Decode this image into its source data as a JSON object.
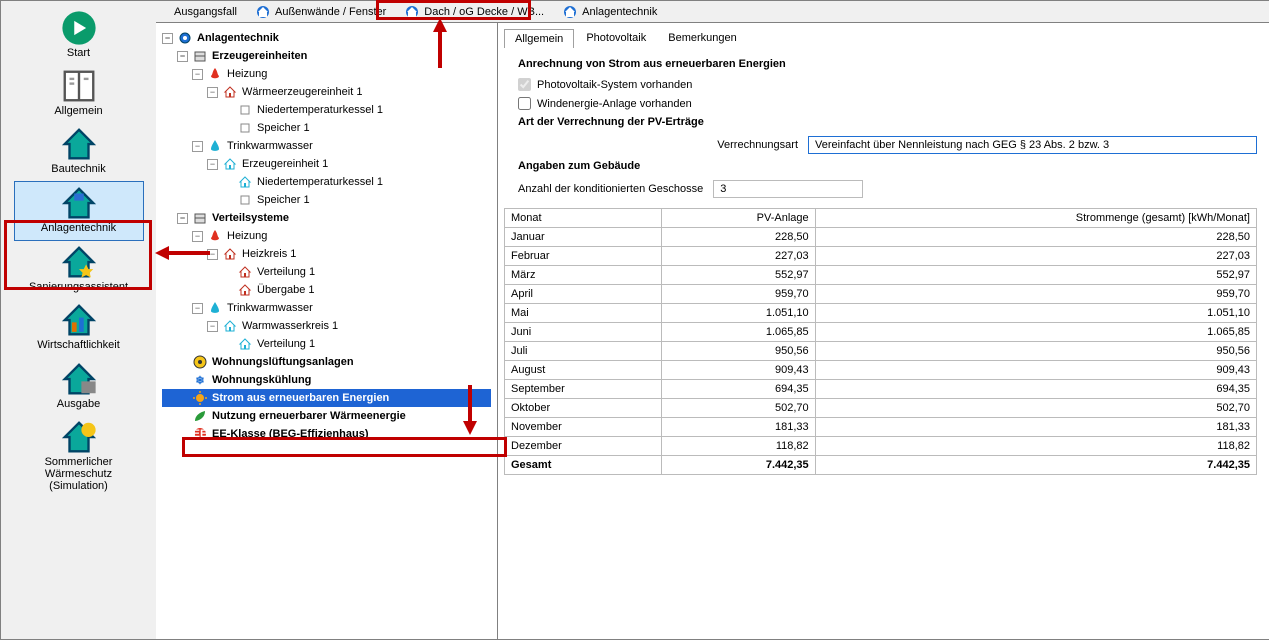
{
  "sidebar": [
    {
      "label": "Start",
      "name": "start"
    },
    {
      "label": "Allgemein",
      "name": "allgemein"
    },
    {
      "label": "Bautechnik",
      "name": "bautechnik"
    },
    {
      "label": "Anlagentechnik",
      "name": "anlagentechnik",
      "active": true
    },
    {
      "label": "Sanierungsassistent",
      "name": "sanierungsassistent"
    },
    {
      "label": "Wirtschaftlichkeit",
      "name": "wirtschaftlichkeit"
    },
    {
      "label": "Ausgabe",
      "name": "ausgabe"
    },
    {
      "label": "Sommerlicher Wärmeschutz (Simulation)",
      "name": "sommerlicher"
    }
  ],
  "tabs": [
    {
      "label": "Ausgangsfall",
      "name": "tab-ausgangsfall"
    },
    {
      "label": "Außenwände / Fenster",
      "name": "tab-aussenwaende"
    },
    {
      "label": "Dach / oG Decke / WB...",
      "name": "tab-dach",
      "highlight": true
    },
    {
      "label": "Anlagentechnik",
      "name": "tab-anlagentechnik"
    }
  ],
  "tree": [
    {
      "d": 0,
      "exp": "-",
      "ic": "gear",
      "t": "Anlagentechnik",
      "b": 1
    },
    {
      "d": 1,
      "exp": "-",
      "ic": "cube",
      "t": "Erzeugereinheiten",
      "b": 1
    },
    {
      "d": 2,
      "exp": "-",
      "ic": "flame",
      "t": "Heizung"
    },
    {
      "d": 3,
      "exp": "-",
      "ic": "house-r",
      "t": "Wärmeerzeugereinheit 1"
    },
    {
      "d": 4,
      "exp": "",
      "ic": "box",
      "t": "Niedertemperaturkessel 1"
    },
    {
      "d": 4,
      "exp": "",
      "ic": "box",
      "t": "Speicher 1"
    },
    {
      "d": 2,
      "exp": "-",
      "ic": "drop",
      "t": "Trinkwarmwasser"
    },
    {
      "d": 3,
      "exp": "-",
      "ic": "house-c",
      "t": "Erzeugereinheit 1"
    },
    {
      "d": 4,
      "exp": "",
      "ic": "house-c",
      "t": "Niedertemperaturkessel 1"
    },
    {
      "d": 4,
      "exp": "",
      "ic": "box",
      "t": "Speicher 1"
    },
    {
      "d": 1,
      "exp": "-",
      "ic": "cube",
      "t": "Verteilsysteme",
      "b": 1
    },
    {
      "d": 2,
      "exp": "-",
      "ic": "flame",
      "t": "Heizung"
    },
    {
      "d": 3,
      "exp": "-",
      "ic": "house-r",
      "t": "Heizkreis 1"
    },
    {
      "d": 4,
      "exp": "",
      "ic": "house-r",
      "t": "Verteilung 1"
    },
    {
      "d": 4,
      "exp": "",
      "ic": "house-r",
      "t": "Übergabe 1"
    },
    {
      "d": 2,
      "exp": "-",
      "ic": "drop",
      "t": "Trinkwarmwasser"
    },
    {
      "d": 3,
      "exp": "-",
      "ic": "house-c",
      "t": "Warmwasserkreis 1"
    },
    {
      "d": 4,
      "exp": "",
      "ic": "house-c",
      "t": "Verteilung 1"
    },
    {
      "d": 1,
      "exp": "",
      "ic": "fan",
      "t": "Wohnungslüftungsanlagen",
      "b": 1
    },
    {
      "d": 1,
      "exp": "",
      "ic": "snow",
      "t": "Wohnungskühlung",
      "b": 1
    },
    {
      "d": 1,
      "exp": "",
      "ic": "sun",
      "t": "Strom aus erneuerbaren Energien",
      "b": 1,
      "sel": 1
    },
    {
      "d": 1,
      "exp": "",
      "ic": "leaf",
      "t": "Nutzung erneuerbarer Wärmeenergie",
      "b": 1
    },
    {
      "d": 1,
      "exp": "",
      "ic": "badge",
      "t": "EE-Klasse (BEG-Effizienhaus)",
      "b": 1
    }
  ],
  "content": {
    "tabs": [
      "Allgemein",
      "Photovoltaik",
      "Bemerkungen"
    ],
    "sec1_title": "Anrechnung von Strom aus erneuerbaren Energien",
    "chk1": "Photovoltaik-System vorhanden",
    "chk2": "Windenergie-Anlage vorhanden",
    "sec2_title": "Art der Verrechnung der PV-Erträge",
    "verr_label": "Verrechnungsart",
    "verr_value": "Vereinfacht über Nennleistung nach GEG § 23 Abs. 2 bzw. 3",
    "sec3_title": "Angaben zum Gebäude",
    "gesch_label": "Anzahl der konditionierten Geschosse",
    "gesch_value": "3",
    "table": {
      "cols": [
        "Monat",
        "PV-Anlage",
        "Strommenge (gesamt) [kWh/Monat]"
      ],
      "rows": [
        [
          "Januar",
          "228,50",
          "228,50"
        ],
        [
          "Februar",
          "227,03",
          "227,03"
        ],
        [
          "März",
          "552,97",
          "552,97"
        ],
        [
          "April",
          "959,70",
          "959,70"
        ],
        [
          "Mai",
          "1.051,10",
          "1.051,10"
        ],
        [
          "Juni",
          "1.065,85",
          "1.065,85"
        ],
        [
          "Juli",
          "950,56",
          "950,56"
        ],
        [
          "August",
          "909,43",
          "909,43"
        ],
        [
          "September",
          "694,35",
          "694,35"
        ],
        [
          "Oktober",
          "502,70",
          "502,70"
        ],
        [
          "November",
          "181,33",
          "181,33"
        ],
        [
          "Dezember",
          "118,82",
          "118,82"
        ]
      ],
      "total": [
        "Gesamt",
        "7.442,35",
        "7.442,35"
      ]
    }
  }
}
